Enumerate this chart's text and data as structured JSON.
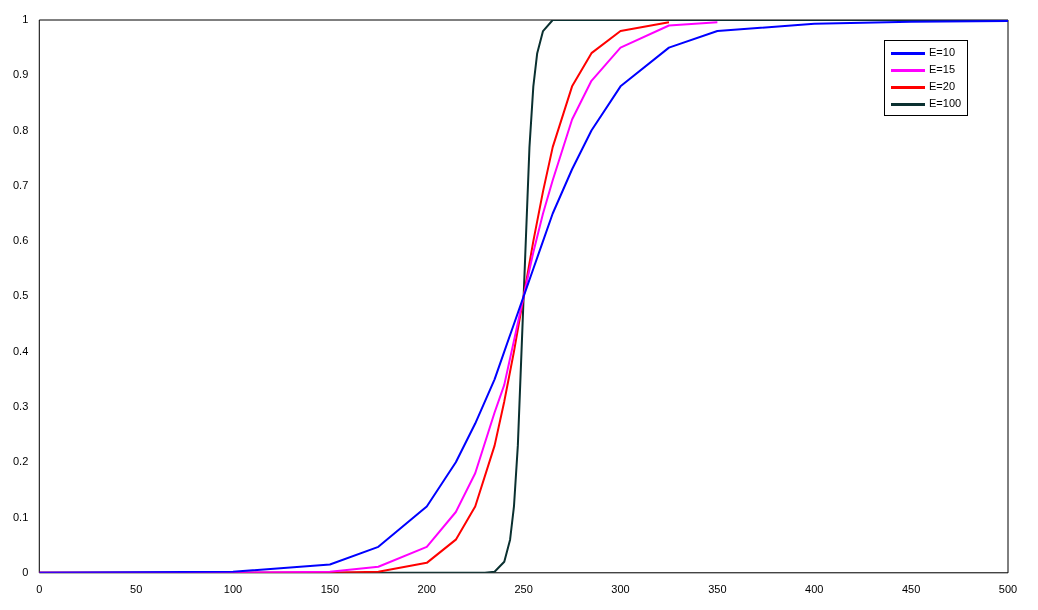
{
  "chart_data": {
    "type": "line",
    "xlim": [
      0,
      500
    ],
    "ylim": [
      0,
      1
    ],
    "xticks": [
      0,
      50,
      100,
      150,
      200,
      250,
      300,
      350,
      400,
      450,
      500
    ],
    "yticks": [
      0,
      0.1,
      0.2,
      0.3,
      0.4,
      0.5,
      0.6,
      0.7,
      0.8,
      0.9,
      1
    ],
    "grid": false,
    "legend": "top right",
    "marker": "none",
    "line_style": "solid",
    "series": [
      {
        "name": "E=10",
        "color": "#0000ff",
        "x": [
          0,
          100,
          150,
          175,
          200,
          215,
          225,
          235,
          240,
          245,
          250,
          255,
          260,
          265,
          275,
          285,
          300,
          325,
          350,
          400,
          450,
          500
        ],
        "values": [
          0,
          0.002,
          0.015,
          0.047,
          0.12,
          0.2,
          0.27,
          0.35,
          0.4,
          0.45,
          0.5,
          0.55,
          0.6,
          0.65,
          0.73,
          0.8,
          0.88,
          0.95,
          0.98,
          0.993,
          0.997,
          0.998
        ]
      },
      {
        "name": "E=15",
        "color": "#ff00ff",
        "x": [
          0,
          100,
          150,
          175,
          200,
          215,
          225,
          235,
          240,
          245,
          250,
          255,
          260,
          265,
          275,
          285,
          300,
          325,
          350
        ],
        "values": [
          0,
          0,
          0.002,
          0.011,
          0.047,
          0.11,
          0.18,
          0.29,
          0.34,
          0.42,
          0.5,
          0.58,
          0.65,
          0.71,
          0.82,
          0.89,
          0.95,
          0.99,
          0.996
        ]
      },
      {
        "name": "E=20",
        "color": "#ff0000",
        "x": [
          0,
          150,
          175,
          200,
          215,
          225,
          235,
          240,
          245,
          250,
          255,
          260,
          265,
          275,
          285,
          300,
          325
        ],
        "values": [
          0,
          0,
          0.002,
          0.018,
          0.06,
          0.12,
          0.23,
          0.31,
          0.4,
          0.5,
          0.6,
          0.69,
          0.77,
          0.88,
          0.94,
          0.98,
          0.996
        ]
      },
      {
        "name": "E=100",
        "color": "#0a3030",
        "x": [
          0,
          230,
          235,
          240,
          243,
          245,
          247,
          250,
          253,
          255,
          257,
          260,
          265,
          500
        ],
        "values": [
          0,
          0,
          0.002,
          0.02,
          0.06,
          0.12,
          0.23,
          0.5,
          0.77,
          0.88,
          0.94,
          0.98,
          1,
          1
        ]
      }
    ]
  }
}
